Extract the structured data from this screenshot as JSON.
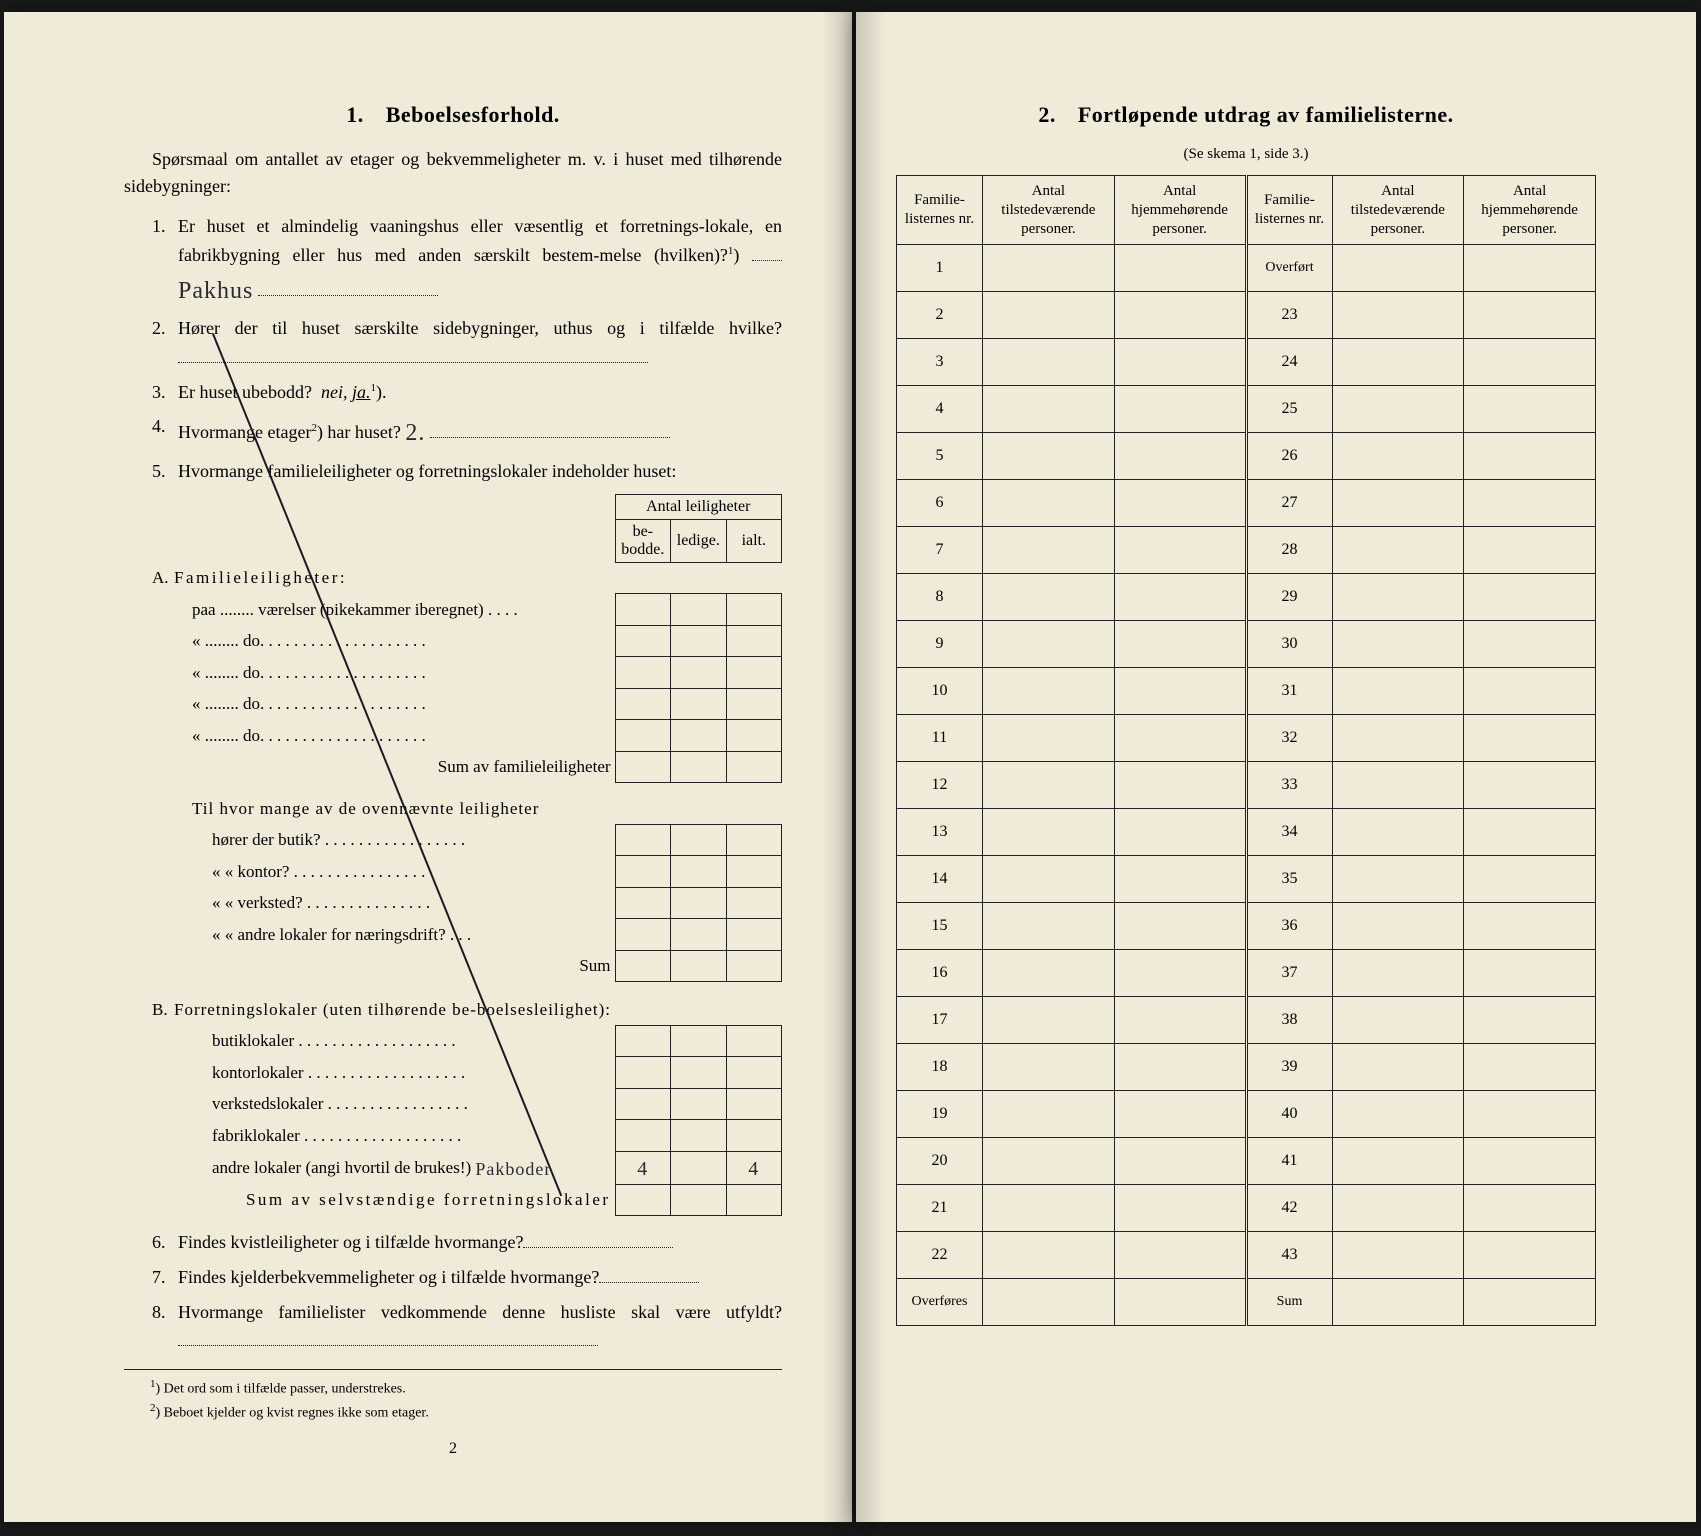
{
  "colors": {
    "paper": "#f0ead8",
    "ink": "#1a1a1a",
    "handwriting": "#2a2a35",
    "background": "#1a1a1a"
  },
  "typography": {
    "body_family": "Times New Roman",
    "body_size_pt": 13,
    "heading_size_pt": 16,
    "handwriting_family": "Brush Script MT"
  },
  "page_left": {
    "heading_number": "1.",
    "heading_text": "Beboelsesforhold.",
    "intro": "Spørsmaal om antallet av etager og bekvemmeligheter m. v. i huset med tilhørende sidebygninger:",
    "questions": {
      "q1": {
        "num": "1.",
        "text_a": "Er huset et almindelig vaaningshus eller væsentlig et forretnings-lokale, en fabrikbygning eller hus med anden særskilt bestem-melse (hvilken)?",
        "note_ref": "1",
        "answer": "Pakhus"
      },
      "q2": {
        "num": "2.",
        "text": "Hører der til huset særskilte sidebygninger, uthus og i tilfælde hvilke?"
      },
      "q3": {
        "num": "3.",
        "text": "Er huset ubebodd?",
        "options_a": "nei,",
        "options_b": "ja.",
        "note_ref": "1"
      },
      "q4": {
        "num": "4.",
        "text": "Hvormange etager",
        "note_ref": "2",
        "text_suffix": ") har huset?",
        "answer": "2."
      },
      "q5": {
        "num": "5.",
        "text": "Hvormange familieleiligheter og forretningslokaler indeholder huset:"
      },
      "q6": {
        "num": "6.",
        "text": "Findes kvistleiligheter og i tilfælde hvormange?"
      },
      "q7": {
        "num": "7.",
        "text": "Findes kjelderbekvemmeligheter og i tilfælde hvormange?"
      },
      "q8": {
        "num": "8.",
        "text": "Hvormange familielister vedkommende denne husliste skal være utfyldt?"
      }
    },
    "mini_table": {
      "header_top": "Antal leiligheter",
      "headers": [
        "be-\nbodde.",
        "ledige.",
        "ialt."
      ],
      "section_a": {
        "letter": "A.",
        "title": "Familieleiligheter:",
        "rows": [
          "paa ........ værelser (pikekammer iberegnet) . . . .",
          "«  ........  do.  . . . . . . . . . . . . . . . . . . .",
          "«  ........  do.  . . . . . . . . . . . . . . . . . . .",
          "«  ........  do.  . . . . . . . . . . . . . . . . . . .",
          "«  ........  do.  . . . . . . . . . . . . . . . . . . ."
        ],
        "sum_label": "Sum av familieleiligheter",
        "subhead": "Til hvor mange av de ovennævnte leiligheter",
        "subrows": [
          "hører der butik? . . . . . . . . . . . . . . . . .",
          "«    «  kontor? . . . . . . . . . . . . . . . .",
          "«    «  verksted? . . . . . . . . . . . . . . .",
          "«    «  andre lokaler for næringsdrift? . . ."
        ],
        "sub_sum": "Sum"
      },
      "section_b": {
        "letter": "B.",
        "title": "Forretningslokaler (uten tilhørende be-boelsesleilighet):",
        "rows": [
          "butiklokaler . . . . . . . . . . . . . . . . . . .",
          "kontorlokaler . . . . . . . . . . . . . . . . . . .",
          "verkstedslokaler . . . . . . . . . . . . . . . . .",
          "fabriklokaler . . . . . . . . . . . . . . . . . . .",
          "andre lokaler (angi hvortil de brukes!)"
        ],
        "hand_note": "Pakboder",
        "hand_count_a": "4",
        "hand_count_b": "4",
        "sum_label": "Sum av selvstændige forretningslokaler"
      }
    },
    "footnotes": {
      "f1": "Det ord som i tilfælde passer, understrekes.",
      "f2": "Beboet kjelder og kvist regnes ikke som etager."
    },
    "page_number": "2"
  },
  "page_right": {
    "heading_number": "2.",
    "heading_text": "Fortløpende utdrag av familielisterne.",
    "sub_ref": "(Se skema 1, side 3.)",
    "table": {
      "headers": {
        "nr": "Familie-listernes nr.",
        "present": "Antal tilstedeværende personer.",
        "belonging": "Antal hjemmehørende personer."
      },
      "left_numbers_start": 1,
      "left_numbers_end": 22,
      "left_footer": "Overføres",
      "right_header_first": "Overført",
      "right_numbers_start": 23,
      "right_numbers_end": 43,
      "right_footer": "Sum"
    }
  }
}
